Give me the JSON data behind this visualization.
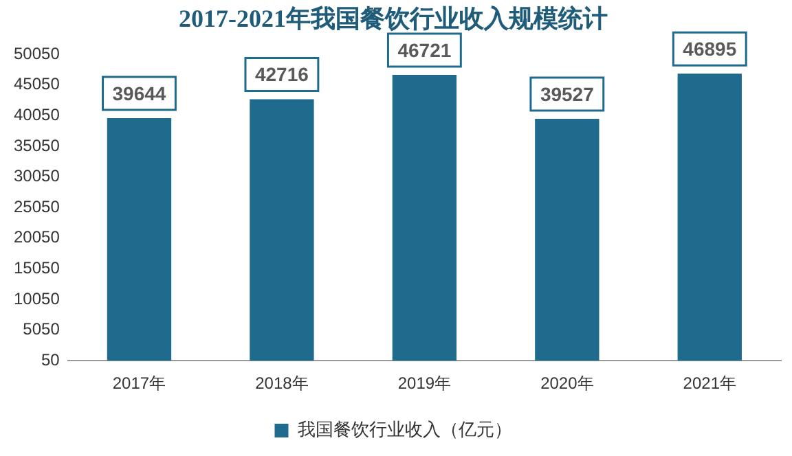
{
  "chart_data": {
    "type": "bar",
    "title": "2017-2021年我国餐饮行业收入规模统计",
    "categories": [
      "2017年",
      "2018年",
      "2019年",
      "2020年",
      "2021年"
    ],
    "series": [
      {
        "name": "我国餐饮行业收入（亿元）",
        "color": "#1f6b8e",
        "values": [
          39644,
          42716,
          46721,
          39527,
          46895
        ]
      }
    ],
    "ylim": [
      50,
      50050
    ],
    "yticks": [
      50,
      5050,
      10050,
      15050,
      20050,
      25050,
      30050,
      35050,
      40050,
      45050,
      50050
    ],
    "grid": false,
    "legend": "bottom",
    "data_labels": true
  }
}
